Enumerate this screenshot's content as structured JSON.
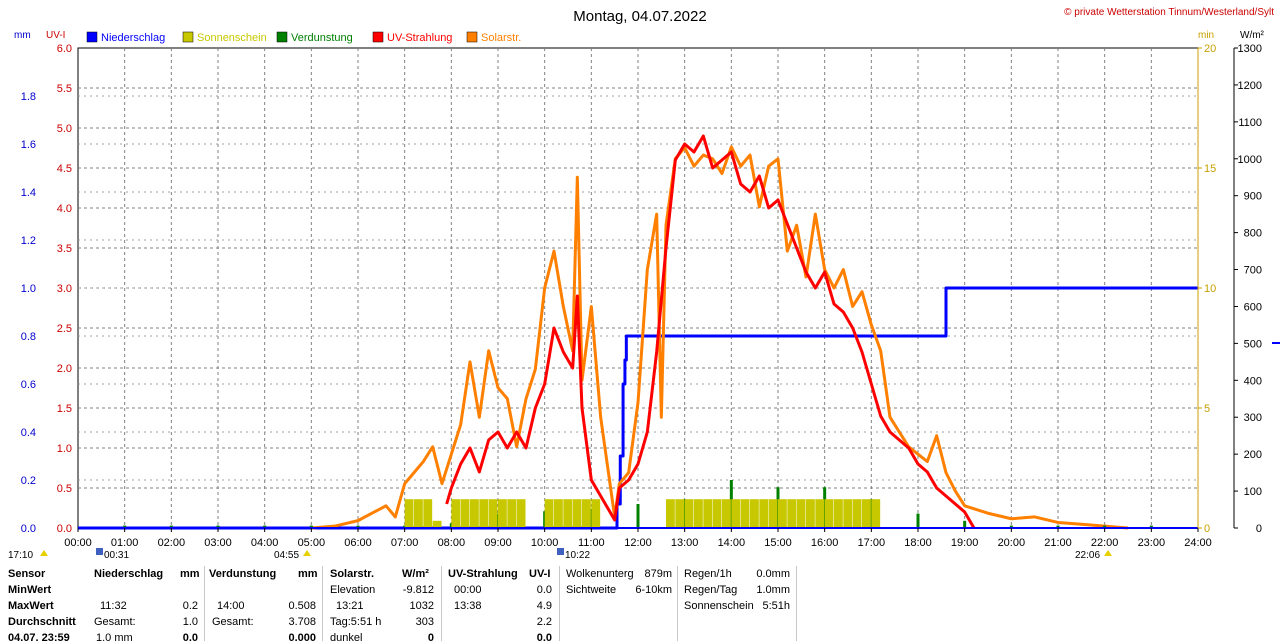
{
  "title": "Montag, 04.07.2022",
  "copyright": "© private Wetterstation Tinnum/Westerland/Sylt",
  "axis_units": {
    "mm": "mm",
    "uvi": "UV-I",
    "min": "min",
    "wm2": "W/m²"
  },
  "legend": [
    {
      "label": "Niederschlag",
      "color": "#0000ff"
    },
    {
      "label": "Sonnenschein",
      "color": "#c8c800"
    },
    {
      "label": "Verdunstung",
      "color": "#008000"
    },
    {
      "label": "UV-Strahlung",
      "color": "#ff0000"
    },
    {
      "label": "Solarstr.",
      "color": "#ff8000"
    }
  ],
  "markers": {
    "sunrise_time": "04:55",
    "sunset_time": "22:06",
    "left_edge_time": "17:10",
    "marker1": "00:31",
    "marker2": "10:22"
  },
  "chart_data": {
    "type": "line",
    "x_range": [
      "00:00",
      "24:00"
    ],
    "x_ticks": [
      "00:00",
      "01:00",
      "02:00",
      "03:00",
      "04:00",
      "05:00",
      "06:00",
      "07:00",
      "08:00",
      "09:00",
      "10:00",
      "11:00",
      "12:00",
      "13:00",
      "14:00",
      "15:00",
      "16:00",
      "17:00",
      "18:00",
      "19:00",
      "20:00",
      "21:00",
      "22:00",
      "23:00",
      "24:00"
    ],
    "y_axes": {
      "mm": {
        "range": [
          0,
          2.0
        ],
        "ticks": [
          "0.0",
          "0.2",
          "0.4",
          "0.6",
          "0.8",
          "1.0",
          "1.2",
          "1.4",
          "1.6",
          "1.8"
        ],
        "color": "#0000cc"
      },
      "uvi": {
        "range": [
          0,
          6.0
        ],
        "ticks": [
          "0.0",
          "0.5",
          "1.0",
          "1.5",
          "2.0",
          "2.5",
          "3.0",
          "3.5",
          "4.0",
          "4.5",
          "5.0",
          "5.5",
          "6.0"
        ],
        "color": "#cc0000"
      },
      "min": {
        "range": [
          0,
          20
        ],
        "ticks": [
          "0",
          "5",
          "10",
          "15",
          "20"
        ],
        "color": "#c8a000"
      },
      "wm2": {
        "range": [
          0,
          1300
        ],
        "ticks": [
          "0",
          "100",
          "200",
          "300",
          "400",
          "500",
          "600",
          "700",
          "800",
          "900",
          "1000",
          "1100",
          "1200",
          "1300"
        ],
        "color": "#000000"
      }
    },
    "series": [
      {
        "name": "Niederschlag",
        "axis": "mm",
        "step": true,
        "x": [
          0,
          11.5,
          11.55,
          11.62,
          11.68,
          11.72,
          11.75,
          18.55,
          18.6,
          24
        ],
        "y": [
          0,
          0,
          0.1,
          0.3,
          0.6,
          0.7,
          0.8,
          0.8,
          1.0,
          1.0
        ]
      },
      {
        "name": "Solarstr.",
        "axis": "wm2",
        "x": [
          5.0,
          5.5,
          6.0,
          6.3,
          6.6,
          6.8,
          7.0,
          7.2,
          7.4,
          7.6,
          7.8,
          8.0,
          8.2,
          8.4,
          8.6,
          8.8,
          9.0,
          9.2,
          9.4,
          9.6,
          9.8,
          10.0,
          10.2,
          10.4,
          10.6,
          10.7,
          10.8,
          11.0,
          11.2,
          11.4,
          11.5,
          11.6,
          11.8,
          12.0,
          12.2,
          12.4,
          12.5,
          12.6,
          12.8,
          13.0,
          13.2,
          13.4,
          13.6,
          13.8,
          14.0,
          14.2,
          14.4,
          14.6,
          14.8,
          15.0,
          15.2,
          15.4,
          15.6,
          15.8,
          16.0,
          16.2,
          16.4,
          16.6,
          16.8,
          17.0,
          17.2,
          17.4,
          17.6,
          17.8,
          18.0,
          18.2,
          18.4,
          18.6,
          18.8,
          19.0,
          19.5,
          20.0,
          20.5,
          21.0,
          21.5,
          22.0,
          22.5
        ],
        "y": [
          0,
          5,
          20,
          40,
          60,
          30,
          120,
          150,
          180,
          220,
          120,
          200,
          280,
          450,
          300,
          480,
          380,
          350,
          220,
          350,
          430,
          650,
          750,
          600,
          480,
          950,
          400,
          600,
          300,
          120,
          30,
          120,
          150,
          340,
          700,
          850,
          300,
          820,
          1000,
          1030,
          980,
          1010,
          1000,
          960,
          1032,
          980,
          1010,
          870,
          980,
          1000,
          750,
          820,
          680,
          850,
          700,
          650,
          700,
          600,
          640,
          550,
          480,
          300,
          260,
          220,
          200,
          180,
          250,
          150,
          100,
          60,
          40,
          25,
          30,
          15,
          10,
          5,
          0
        ]
      },
      {
        "name": "UV-Strahlung",
        "axis": "uvi",
        "x": [
          7.9,
          8.0,
          8.2,
          8.4,
          8.6,
          8.8,
          9.0,
          9.2,
          9.4,
          9.6,
          9.8,
          10.0,
          10.2,
          10.4,
          10.6,
          10.7,
          10.8,
          11.0,
          11.2,
          11.4,
          11.5,
          11.6,
          11.8,
          12.0,
          12.2,
          12.4,
          12.6,
          12.8,
          13.0,
          13.2,
          13.4,
          13.6,
          13.8,
          14.0,
          14.2,
          14.4,
          14.6,
          14.8,
          15.0,
          15.2,
          15.4,
          15.6,
          15.8,
          16.0,
          16.2,
          16.4,
          16.6,
          16.8,
          17.0,
          17.2,
          17.4,
          17.6,
          17.8,
          18.0,
          18.2,
          18.4,
          18.6,
          18.8,
          19.0,
          19.2
        ],
        "y": [
          0.3,
          0.5,
          0.8,
          1.0,
          0.7,
          1.1,
          1.2,
          1.0,
          1.2,
          1.0,
          1.5,
          1.8,
          2.5,
          2.2,
          2.0,
          2.9,
          1.5,
          0.6,
          0.4,
          0.2,
          0.1,
          0.5,
          0.6,
          0.8,
          1.2,
          2.2,
          3.5,
          4.6,
          4.8,
          4.7,
          4.9,
          4.5,
          4.6,
          4.7,
          4.3,
          4.2,
          4.4,
          4.0,
          4.1,
          3.8,
          3.5,
          3.2,
          3.0,
          3.2,
          2.8,
          2.7,
          2.5,
          2.2,
          1.8,
          1.4,
          1.2,
          1.1,
          1.0,
          0.8,
          0.7,
          0.5,
          0.4,
          0.3,
          0.2,
          0.0
        ]
      },
      {
        "name": "Verdunstung",
        "axis": "mm",
        "impulses": true,
        "x": [
          1.0,
          2.0,
          3.0,
          4.0,
          5.0,
          6.0,
          7.0,
          8.0,
          8.5,
          9.0,
          10.0,
          11.0,
          12.0,
          13.0,
          14.0,
          15.0,
          16.0,
          17.0,
          18.0,
          19.0,
          20.0,
          21.0,
          22.0,
          23.0
        ],
        "y": [
          0.01,
          0.01,
          0.01,
          0.01,
          0.01,
          0.01,
          0.01,
          0.02,
          0.02,
          0.06,
          0.07,
          0.08,
          0.1,
          0.12,
          0.2,
          0.17,
          0.17,
          0.12,
          0.06,
          0.03,
          0.01,
          0.01,
          0.01,
          0.01
        ]
      },
      {
        "name": "Sonnenschein",
        "axis": "min",
        "bars": true,
        "x": [
          6.8,
          7.0,
          7.2,
          7.4,
          7.6,
          7.8,
          8.0,
          8.2,
          8.4,
          8.6,
          8.8,
          9.0,
          9.2,
          9.4,
          9.6,
          9.8,
          10.0,
          10.2,
          10.4,
          10.6,
          10.8,
          11.0,
          11.2,
          11.4,
          11.6,
          11.8,
          12.0,
          12.2,
          12.4,
          12.6,
          12.8,
          13.0,
          13.2,
          13.4,
          13.6,
          13.8,
          14.0,
          14.2,
          14.4,
          14.6,
          14.8,
          15.0,
          15.2,
          15.4,
          15.6,
          15.8,
          16.0,
          16.2,
          16.4,
          16.6,
          16.8,
          17.0,
          17.2
        ],
        "y": [
          0,
          1.2,
          1.2,
          1.2,
          0.3,
          0,
          1.2,
          1.2,
          1.2,
          1.2,
          1.2,
          1.2,
          1.2,
          1.2,
          0,
          0,
          1.2,
          1.2,
          1.2,
          1.2,
          1.2,
          1.2,
          0,
          0,
          0,
          0,
          0,
          0,
          0,
          1.2,
          1.2,
          1.2,
          1.2,
          1.2,
          1.2,
          1.2,
          1.2,
          1.2,
          1.2,
          1.2,
          1.2,
          1.2,
          1.2,
          1.2,
          1.2,
          1.2,
          1.2,
          1.2,
          1.2,
          1.2,
          1.2,
          1.2,
          0
        ]
      }
    ]
  },
  "table": {
    "sensor": {
      "header": "Sensor",
      "rows": [
        "MinWert",
        "MaxWert",
        "Durchschnitt",
        "04.07. 23:59"
      ]
    },
    "niederschlag": {
      "header": "Niederschlag",
      "unit": "mm",
      "rows": [
        [
          "",
          ""
        ],
        [
          "11:32",
          "0.2"
        ],
        [
          "Gesamt:",
          "1.0"
        ],
        [
          "1.0 mm",
          "0.0"
        ]
      ]
    },
    "verdunstung": {
      "header": "Verdunstung",
      "unit": "mm",
      "rows": [
        [
          "",
          ""
        ],
        [
          "14:00",
          "0.508"
        ],
        [
          "Gesamt:",
          "3.708"
        ],
        [
          "",
          "0.000"
        ]
      ]
    },
    "solar": {
      "header": "Solarstr.",
      "unit": "W/m²",
      "rows": [
        [
          "Elevation",
          "-9.812"
        ],
        [
          "13:21",
          "1032"
        ],
        [
          "Tag:5:51 h",
          "303"
        ],
        [
          "dunkel",
          "0"
        ]
      ]
    },
    "uv": {
      "header": "UV-Strahlung",
      "unit": "UV-I",
      "rows": [
        [
          "00:00",
          "0.0"
        ],
        [
          "13:38",
          "4.9"
        ],
        [
          "",
          "2.2"
        ],
        [
          "",
          "0.0"
        ]
      ]
    },
    "clouds": {
      "rows": [
        [
          "Wolkenunterg",
          "879m"
        ],
        [
          "Sichtweite",
          "6-10km"
        ]
      ]
    },
    "rain": {
      "rows": [
        [
          "Regen/1h",
          "0.0mm"
        ],
        [
          "Regen/Tag",
          "1.0mm"
        ],
        [
          "Sonnenschein",
          "5:51h"
        ]
      ]
    }
  }
}
